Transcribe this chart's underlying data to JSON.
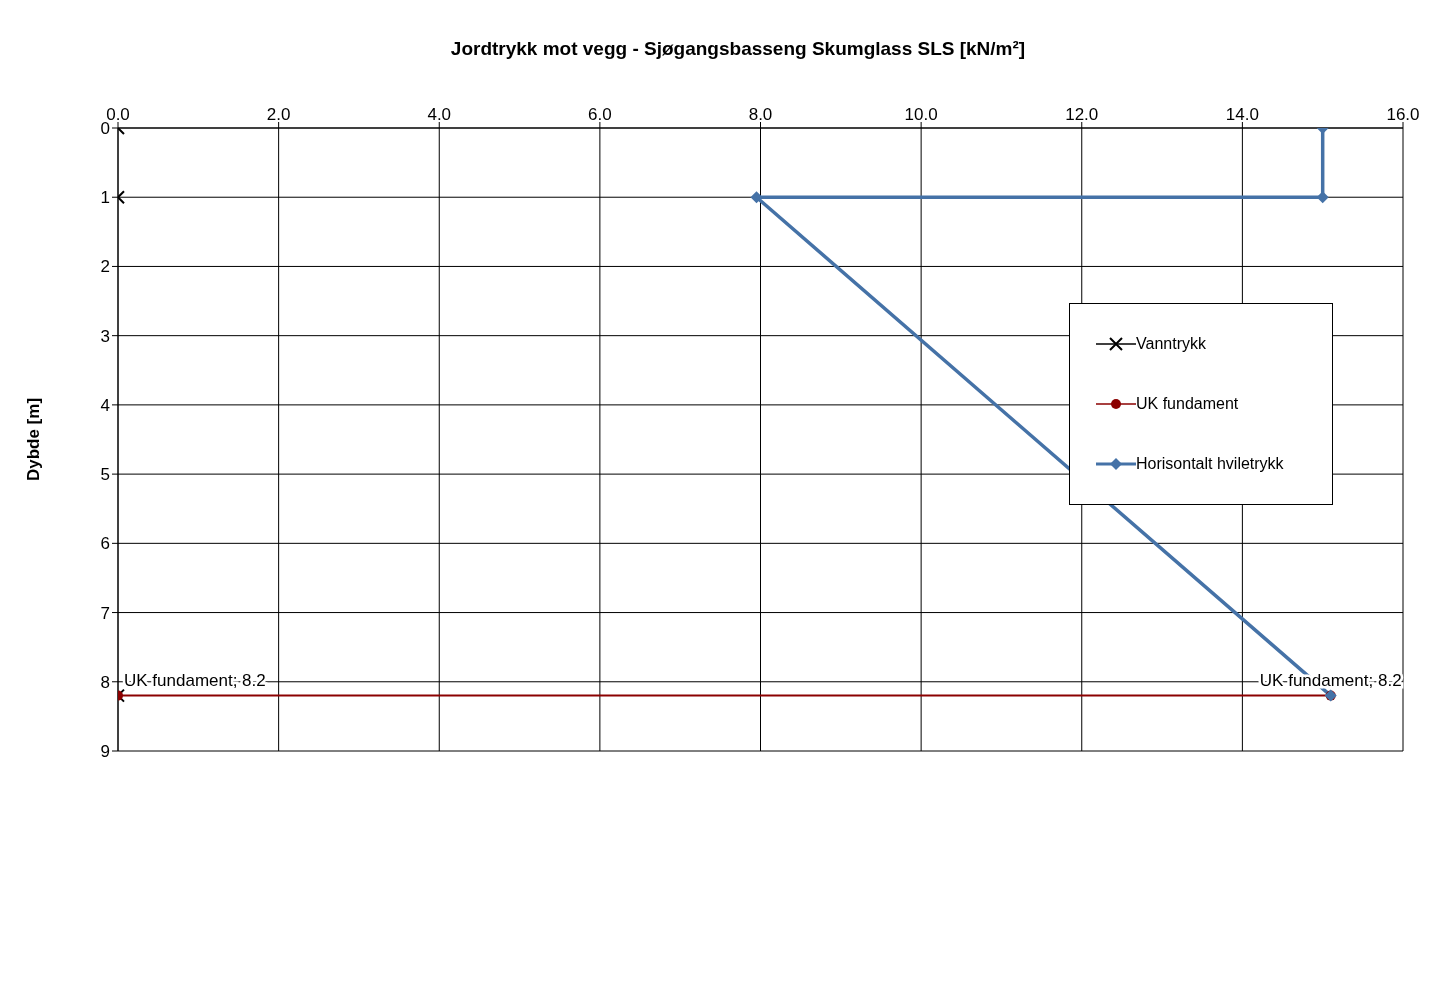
{
  "chart_data": {
    "type": "line",
    "title": "Jordtrykk mot vegg - Sjøgangsbasseng Skumglass SLS [kN/m²]",
    "ylabel": "Dybde [m]",
    "series": [
      {
        "name": "Vanntrykk",
        "type": "scatter",
        "color": "#000000",
        "marker": "cross",
        "x": [
          0,
          0,
          0
        ],
        "values": [
          0,
          1,
          8.2
        ]
      },
      {
        "name": "UK fundament",
        "color": "#8b0000",
        "marker": "circle",
        "x": [
          0,
          15.1
        ],
        "values": [
          8.2,
          8.2
        ]
      },
      {
        "name": "Horisontalt hviletrykk",
        "color": "#4572a7",
        "marker": "diamond",
        "x": [
          15,
          15,
          7.95,
          15.1
        ],
        "values": [
          0,
          1,
          1,
          8.2
        ]
      }
    ],
    "xlim": [
      0,
      16
    ],
    "xticks": [
      {
        "value": 0,
        "label": "0.0"
      },
      {
        "value": 2,
        "label": "2.0"
      },
      {
        "value": 4,
        "label": "4.0"
      },
      {
        "value": 6,
        "label": "6.0"
      },
      {
        "value": 8,
        "label": "8.0"
      },
      {
        "value": 10,
        "label": "10.0"
      },
      {
        "value": 12,
        "label": "12.0"
      },
      {
        "value": 14,
        "label": "14.0"
      },
      {
        "value": 16,
        "label": "16.0"
      }
    ],
    "ylim": [
      9,
      0
    ],
    "yticks": [
      0,
      1,
      2,
      3,
      4,
      5,
      6,
      7,
      8,
      9
    ],
    "grid": true,
    "legend": "right",
    "annotations": [
      {
        "text": "UK fundament; 8.2",
        "x": 0,
        "y": 8.2
      },
      {
        "text": "UK fundament; 8.2",
        "x": 15.1,
        "y": 8.2
      }
    ]
  }
}
